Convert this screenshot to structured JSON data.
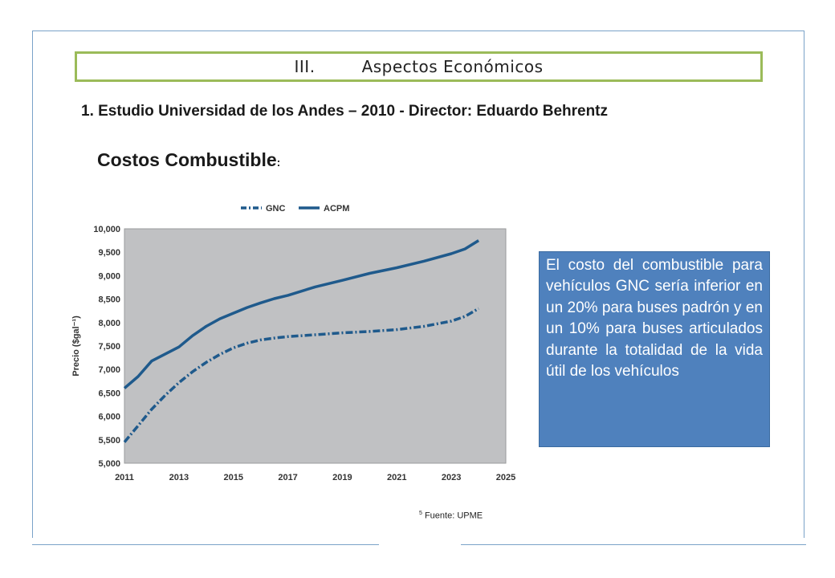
{
  "section": {
    "number": "III.",
    "title": "Aspectos Económicos"
  },
  "study_title": "1. Estudio Universidad de los Andes – 2010  -  Director: Eduardo Behrentz",
  "costs_title": "Costos Combustible",
  "costs_colon": ":",
  "note": "El costo del combustible para vehículos GNC sería inferior en un 20% para buses padrón y en un 10% para buses articulados durante la totalidad de la vida útil de los vehículos",
  "source": {
    "superscript": "5",
    "text": " Fuente: UPME"
  },
  "chart_data": {
    "type": "line",
    "ylabel": "Precio ($gal⁻¹)",
    "xlabel": "",
    "xlim": [
      2011,
      2025
    ],
    "ylim": [
      5000,
      10000
    ],
    "x_ticks": [
      "2011",
      "2013",
      "2015",
      "2017",
      "2019",
      "2021",
      "2023",
      "2025"
    ],
    "y_ticks": [
      "5,000",
      "5,500",
      "6,000",
      "6,500",
      "7,000",
      "7,500",
      "8,000",
      "8,500",
      "9,000",
      "9,500",
      "10,000"
    ],
    "legend_position": "top",
    "grid": false,
    "plot_background": "#c0c1c3",
    "series": [
      {
        "name": "GNC",
        "style": "dash-dot",
        "color": "#1f5a8c",
        "x": [
          2011,
          2011.5,
          2012,
          2012.5,
          2013,
          2013.5,
          2014,
          2014.5,
          2015,
          2015.5,
          2016,
          2016.5,
          2017,
          2018,
          2019,
          2020,
          2021,
          2022,
          2023,
          2023.5,
          2024
        ],
        "y": [
          5450,
          5800,
          6150,
          6450,
          6720,
          6950,
          7150,
          7320,
          7460,
          7560,
          7630,
          7670,
          7700,
          7740,
          7780,
          7810,
          7850,
          7920,
          8030,
          8130,
          8300
        ]
      },
      {
        "name": "ACPM",
        "style": "solid",
        "color": "#1f5a8c",
        "x": [
          2011,
          2011.5,
          2012,
          2012.5,
          2013,
          2013.5,
          2014,
          2014.5,
          2015,
          2015.5,
          2016,
          2016.5,
          2017,
          2018,
          2019,
          2020,
          2021,
          2022,
          2023,
          2023.5,
          2024
        ],
        "y": [
          6600,
          6850,
          7180,
          7330,
          7480,
          7720,
          7920,
          8080,
          8200,
          8320,
          8420,
          8510,
          8580,
          8760,
          8900,
          9050,
          9170,
          9310,
          9470,
          9570,
          9750
        ]
      }
    ]
  }
}
